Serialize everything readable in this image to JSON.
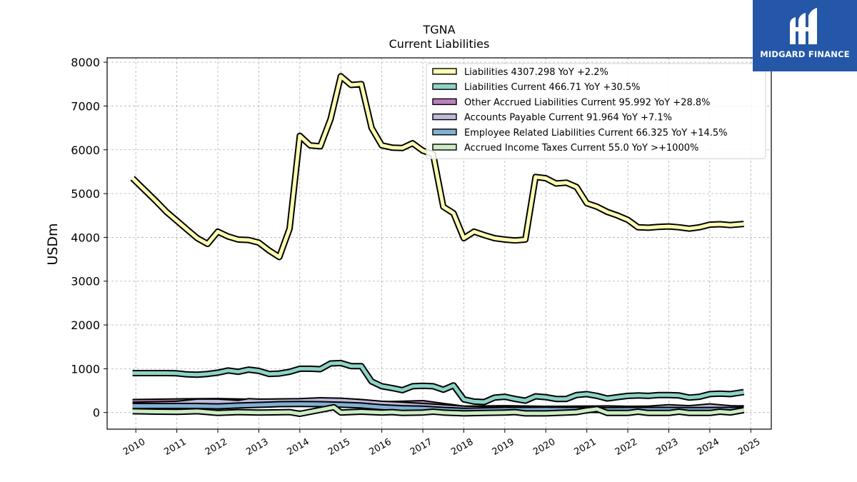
{
  "chart_data": {
    "type": "area",
    "title": "TGNA",
    "subtitle": "Current  Liabilities",
    "ylabel": "USDm",
    "xlabel": "",
    "xlim": [
      2009.3,
      2025.5
    ],
    "ylim": [
      -380,
      8100
    ],
    "yticks": [
      0,
      1000,
      2000,
      3000,
      4000,
      5000,
      6000,
      7000,
      8000
    ],
    "xticks": [
      2010,
      2011,
      2012,
      2013,
      2014,
      2015,
      2016,
      2017,
      2018,
      2019,
      2020,
      2021,
      2022,
      2023,
      2024,
      2025
    ],
    "grid": true,
    "legend_position": "top-right",
    "series": [
      {
        "name": "Liabilities",
        "legend_text": "Liabilities  4307.298 YoY +2.2%",
        "color": "#ffffb3",
        "points": [
          [
            2009.92,
            5350
          ],
          [
            2010.25,
            5050
          ],
          [
            2010.5,
            4820
          ],
          [
            2010.75,
            4580
          ],
          [
            2011.0,
            4380
          ],
          [
            2011.25,
            4180
          ],
          [
            2011.5,
            3980
          ],
          [
            2011.75,
            3850
          ],
          [
            2012.0,
            4130
          ],
          [
            2012.25,
            4020
          ],
          [
            2012.5,
            3950
          ],
          [
            2012.75,
            3940
          ],
          [
            2013.0,
            3880
          ],
          [
            2013.25,
            3700
          ],
          [
            2013.5,
            3550
          ],
          [
            2013.75,
            4200
          ],
          [
            2014.0,
            6320
          ],
          [
            2014.25,
            6100
          ],
          [
            2014.5,
            6080
          ],
          [
            2014.75,
            6700
          ],
          [
            2015.0,
            7680
          ],
          [
            2015.25,
            7480
          ],
          [
            2015.5,
            7500
          ],
          [
            2015.75,
            6500
          ],
          [
            2016.0,
            6100
          ],
          [
            2016.25,
            6050
          ],
          [
            2016.5,
            6040
          ],
          [
            2016.75,
            6150
          ],
          [
            2017.0,
            5980
          ],
          [
            2017.25,
            5900
          ],
          [
            2017.5,
            4700
          ],
          [
            2017.75,
            4550
          ],
          [
            2018.0,
            3980
          ],
          [
            2018.25,
            4130
          ],
          [
            2018.5,
            4050
          ],
          [
            2018.75,
            3980
          ],
          [
            2019.0,
            3950
          ],
          [
            2019.25,
            3930
          ],
          [
            2019.5,
            3950
          ],
          [
            2019.75,
            5380
          ],
          [
            2020.0,
            5350
          ],
          [
            2020.25,
            5230
          ],
          [
            2020.5,
            5250
          ],
          [
            2020.75,
            5150
          ],
          [
            2021.0,
            4780
          ],
          [
            2021.25,
            4700
          ],
          [
            2021.5,
            4580
          ],
          [
            2021.75,
            4500
          ],
          [
            2022.0,
            4400
          ],
          [
            2022.25,
            4230
          ],
          [
            2022.5,
            4220
          ],
          [
            2022.75,
            4240
          ],
          [
            2023.0,
            4250
          ],
          [
            2023.25,
            4230
          ],
          [
            2023.5,
            4200
          ],
          [
            2023.75,
            4230
          ],
          [
            2024.0,
            4290
          ],
          [
            2024.25,
            4300
          ],
          [
            2024.5,
            4280
          ],
          [
            2024.83,
            4307
          ]
        ]
      },
      {
        "name": "Liabilities Current",
        "legend_text": "Liabilities Current  466.71 YoY +30.5%",
        "color": "#8dd3c7",
        "points": [
          [
            2009.92,
            900
          ],
          [
            2010.25,
            900
          ],
          [
            2010.5,
            900
          ],
          [
            2010.75,
            900
          ],
          [
            2011.0,
            895
          ],
          [
            2011.25,
            870
          ],
          [
            2011.5,
            865
          ],
          [
            2011.75,
            880
          ],
          [
            2012.0,
            910
          ],
          [
            2012.25,
            960
          ],
          [
            2012.5,
            930
          ],
          [
            2012.75,
            980
          ],
          [
            2013.0,
            950
          ],
          [
            2013.25,
            880
          ],
          [
            2013.5,
            890
          ],
          [
            2013.75,
            930
          ],
          [
            2014.0,
            1000
          ],
          [
            2014.25,
            1000
          ],
          [
            2014.5,
            990
          ],
          [
            2014.75,
            1120
          ],
          [
            2015.0,
            1130
          ],
          [
            2015.25,
            1060
          ],
          [
            2015.5,
            1060
          ],
          [
            2015.75,
            710
          ],
          [
            2016.0,
            600
          ],
          [
            2016.25,
            560
          ],
          [
            2016.5,
            510
          ],
          [
            2016.75,
            600
          ],
          [
            2017.0,
            610
          ],
          [
            2017.25,
            600
          ],
          [
            2017.5,
            520
          ],
          [
            2017.75,
            620
          ],
          [
            2018.0,
            300
          ],
          [
            2018.25,
            250
          ],
          [
            2018.5,
            240
          ],
          [
            2018.75,
            340
          ],
          [
            2019.0,
            360
          ],
          [
            2019.25,
            310
          ],
          [
            2019.5,
            270
          ],
          [
            2019.75,
            370
          ],
          [
            2020.0,
            350
          ],
          [
            2020.25,
            310
          ],
          [
            2020.5,
            310
          ],
          [
            2020.75,
            400
          ],
          [
            2021.0,
            420
          ],
          [
            2021.25,
            380
          ],
          [
            2021.5,
            320
          ],
          [
            2021.75,
            350
          ],
          [
            2022.0,
            380
          ],
          [
            2022.25,
            390
          ],
          [
            2022.5,
            380
          ],
          [
            2022.75,
            400
          ],
          [
            2023.0,
            400
          ],
          [
            2023.25,
            390
          ],
          [
            2023.5,
            340
          ],
          [
            2023.75,
            360
          ],
          [
            2024.0,
            420
          ],
          [
            2024.25,
            430
          ],
          [
            2024.5,
            420
          ],
          [
            2024.83,
            467
          ]
        ]
      },
      {
        "name": "Other Accrued Liabilities Current",
        "legend_text": "Other Accrued Liabilities Current  95.992 YoY +28.8%",
        "color": "#bc80bd",
        "points": [
          [
            2009.92,
            240
          ],
          [
            2011.0,
            255
          ],
          [
            2012.0,
            262
          ],
          [
            2013.0,
            245
          ],
          [
            2014.0,
            255
          ],
          [
            2015.0,
            265
          ],
          [
            2015.5,
            240
          ],
          [
            2016.0,
            190
          ],
          [
            2016.5,
            200
          ],
          [
            2017.0,
            215
          ],
          [
            2017.5,
            150
          ],
          [
            2018.0,
            90
          ],
          [
            2019.0,
            100
          ],
          [
            2020.0,
            85
          ],
          [
            2021.0,
            90
          ],
          [
            2022.0,
            85
          ],
          [
            2023.0,
            90
          ],
          [
            2024.0,
            80
          ],
          [
            2024.83,
            96
          ]
        ]
      },
      {
        "name": "Accounts Payable Current",
        "legend_text": "Accounts Payable Current  91.964 YoY +7.1%",
        "color": "#bebada",
        "points": [
          [
            2009.92,
            180
          ],
          [
            2010.5,
            190
          ],
          [
            2011.0,
            200
          ],
          [
            2011.5,
            250
          ],
          [
            2012.0,
            250
          ],
          [
            2012.5,
            220
          ],
          [
            2012.75,
            260
          ],
          [
            2013.0,
            250
          ],
          [
            2013.5,
            255
          ],
          [
            2014.0,
            260
          ],
          [
            2014.5,
            280
          ],
          [
            2015.0,
            270
          ],
          [
            2015.5,
            240
          ],
          [
            2016.0,
            200
          ],
          [
            2016.5,
            180
          ],
          [
            2017.0,
            150
          ],
          [
            2017.5,
            120
          ],
          [
            2018.0,
            90
          ],
          [
            2018.5,
            80
          ],
          [
            2019.0,
            70
          ],
          [
            2019.5,
            75
          ],
          [
            2020.0,
            80
          ],
          [
            2020.5,
            85
          ],
          [
            2021.0,
            90
          ],
          [
            2021.5,
            95
          ],
          [
            2022.0,
            85
          ],
          [
            2022.5,
            90
          ],
          [
            2023.0,
            120
          ],
          [
            2023.5,
            100
          ],
          [
            2024.0,
            140
          ],
          [
            2024.5,
            100
          ],
          [
            2024.83,
            92
          ]
        ]
      },
      {
        "name": "Employee Related Liabilities Current",
        "legend_text": "Employee Related Liabilities Current  66.325 YoY +14.5%",
        "color": "#80b1d3",
        "points": [
          [
            2009.92,
            150
          ],
          [
            2010.5,
            150
          ],
          [
            2011.0,
            150
          ],
          [
            2011.5,
            150
          ],
          [
            2012.0,
            140
          ],
          [
            2012.5,
            160
          ],
          [
            2013.0,
            175
          ],
          [
            2013.5,
            190
          ],
          [
            2014.0,
            195
          ],
          [
            2014.5,
            190
          ],
          [
            2015.0,
            180
          ],
          [
            2015.5,
            160
          ],
          [
            2016.0,
            120
          ],
          [
            2016.5,
            100
          ],
          [
            2017.0,
            90
          ],
          [
            2017.5,
            60
          ],
          [
            2018.0,
            40
          ],
          [
            2018.5,
            50
          ],
          [
            2019.0,
            60
          ],
          [
            2019.5,
            60
          ],
          [
            2020.0,
            65
          ],
          [
            2020.5,
            60
          ],
          [
            2021.0,
            60
          ],
          [
            2021.5,
            55
          ],
          [
            2022.0,
            60
          ],
          [
            2022.5,
            60
          ],
          [
            2023.0,
            60
          ],
          [
            2023.5,
            55
          ],
          [
            2024.0,
            58
          ],
          [
            2024.5,
            60
          ],
          [
            2024.83,
            66
          ]
        ]
      },
      {
        "name": "Accrued Income Taxes Current",
        "legend_text": "Accrued Income Taxes Current  55.0 YoY >+1000%",
        "color": "#ccebc5",
        "points": [
          [
            2009.92,
            30
          ],
          [
            2010.5,
            20
          ],
          [
            2011.0,
            15
          ],
          [
            2011.5,
            30
          ],
          [
            2012.0,
            -10
          ],
          [
            2012.5,
            10
          ],
          [
            2013.0,
            0
          ],
          [
            2013.5,
            5
          ],
          [
            2013.75,
            10
          ],
          [
            2014.0,
            -30
          ],
          [
            2014.5,
            60
          ],
          [
            2014.83,
            120
          ],
          [
            2015.0,
            0
          ],
          [
            2015.5,
            20
          ],
          [
            2016.0,
            0
          ],
          [
            2016.25,
            10
          ],
          [
            2016.5,
            -10
          ],
          [
            2017.0,
            0
          ],
          [
            2017.25,
            20
          ],
          [
            2017.5,
            0
          ],
          [
            2018.0,
            -20
          ],
          [
            2018.5,
            -10
          ],
          [
            2019.0,
            0
          ],
          [
            2019.25,
            10
          ],
          [
            2019.5,
            -20
          ],
          [
            2020.0,
            -20
          ],
          [
            2020.5,
            0
          ],
          [
            2020.75,
            10
          ],
          [
            2021.0,
            50
          ],
          [
            2021.25,
            80
          ],
          [
            2021.5,
            -10
          ],
          [
            2022.0,
            -10
          ],
          [
            2022.25,
            20
          ],
          [
            2022.5,
            -10
          ],
          [
            2023.0,
            -10
          ],
          [
            2023.25,
            20
          ],
          [
            2023.5,
            -10
          ],
          [
            2024.0,
            -10
          ],
          [
            2024.25,
            20
          ],
          [
            2024.5,
            0
          ],
          [
            2024.83,
            55
          ]
        ]
      }
    ]
  },
  "brand": {
    "name": "MIDGARD FINANCE",
    "color": "#2457a8"
  }
}
